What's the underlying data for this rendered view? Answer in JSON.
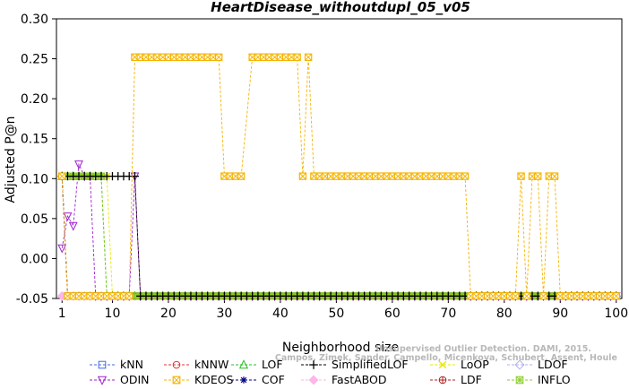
{
  "chart_data": {
    "type": "line",
    "title": "HeartDisease_withoutdupl_05_v05",
    "xlabel": "Neighborhood size",
    "ylabel": "Adjusted P@n",
    "xlim": [
      0,
      101
    ],
    "ylim": [
      -0.05,
      0.3
    ],
    "xticks": [
      1,
      10,
      20,
      30,
      40,
      50,
      60,
      70,
      80,
      90,
      100
    ],
    "yticks": [
      -0.05,
      0.0,
      0.05,
      0.1,
      0.15,
      0.2,
      0.25,
      0.3
    ],
    "ytick_labels": [
      "-0.05",
      "0.00",
      "0.05",
      "0.10",
      "0.15",
      "0.20",
      "0.25",
      "0.30"
    ],
    "grid": false,
    "legend_position": "bottom",
    "watermark": [
      "Campos, Zimek, Sander, Campello, Micenkova, Schubert, Assent, Houle",
      "Unsupervised Outlier Detection. DAMI, 2015."
    ],
    "series": [
      {
        "name": "kNN",
        "color": "#4169e1",
        "marker": "square",
        "segments": [
          {
            "x_from": 1,
            "x_to": 1,
            "y": 0.103
          },
          {
            "x_from": 2,
            "x_to": 100,
            "y": -0.047
          }
        ]
      },
      {
        "name": "kNNW",
        "color": "#e03030",
        "marker": "circle",
        "segments": [
          {
            "x_from": 1,
            "x_to": 1,
            "y": 0.103
          },
          {
            "x_from": 2,
            "x_to": 100,
            "y": -0.047
          }
        ]
      },
      {
        "name": "LOF",
        "color": "#22c022",
        "marker": "triangle-up",
        "segments": [
          {
            "x_from": 1,
            "x_to": 8,
            "y": 0.103
          },
          {
            "x_from": 9,
            "x_to": 100,
            "y": -0.047
          }
        ]
      },
      {
        "name": "SimplifiedLOF",
        "color": "#000000",
        "marker": "plus",
        "segments": [
          {
            "x_from": 1,
            "x_to": 14,
            "y": 0.103
          },
          {
            "x_from": 15,
            "x_to": 100,
            "y": -0.047
          }
        ]
      },
      {
        "name": "LoOP",
        "color": "#e8e800",
        "marker": "x",
        "segments": [
          {
            "x_from": 1,
            "x_to": 9,
            "y": 0.103
          },
          {
            "x_from": 10,
            "x_to": 100,
            "y": -0.047
          }
        ]
      },
      {
        "name": "LDOF",
        "color": "#b0b0ee",
        "marker": "diamond",
        "segments": [
          {
            "x_from": 1,
            "x_to": 100,
            "y": -0.047
          }
        ]
      },
      {
        "name": "ODIN",
        "color": "#a020d0",
        "marker": "triangle-down",
        "points": [
          [
            1,
            0.013
          ],
          [
            2,
            0.053
          ],
          [
            3,
            0.041
          ],
          [
            4,
            0.118
          ],
          [
            5,
            0.103
          ],
          [
            6,
            0.103
          ],
          [
            7,
            -0.047
          ],
          [
            8,
            -0.047
          ],
          [
            9,
            -0.047
          ],
          [
            10,
            -0.047
          ],
          [
            11,
            -0.047
          ],
          [
            12,
            -0.047
          ],
          [
            13,
            -0.047
          ],
          [
            14,
            0.103
          ],
          [
            15,
            -0.047
          ]
        ],
        "tail": {
          "x_from": 16,
          "x_to": 100,
          "y": -0.047
        }
      },
      {
        "name": "KDEOS",
        "color": "#f5b400",
        "marker": "square-x",
        "segments": [
          {
            "x_from": 1,
            "x_to": 1,
            "y": 0.103
          },
          {
            "x_from": 2,
            "x_to": 13,
            "y": -0.047
          },
          {
            "x_from": 14,
            "x_to": 29,
            "y": 0.252
          },
          {
            "x_from": 30,
            "x_to": 33,
            "y": 0.103
          },
          {
            "x_from": 35,
            "x_to": 43,
            "y": 0.252
          },
          {
            "x_from": 44,
            "x_to": 44,
            "y": 0.103
          },
          {
            "x_from": 45,
            "x_to": 45,
            "y": 0.252
          },
          {
            "x_from": 46,
            "x_to": 73,
            "y": 0.103
          },
          {
            "x_from": 74,
            "x_to": 82,
            "y": -0.047
          },
          {
            "x_from": 83,
            "x_to": 83,
            "y": 0.103
          },
          {
            "x_from": 84,
            "x_to": 84,
            "y": -0.047
          },
          {
            "x_from": 85,
            "x_to": 86,
            "y": 0.103
          },
          {
            "x_from": 87,
            "x_to": 87,
            "y": -0.047
          },
          {
            "x_from": 88,
            "x_to": 89,
            "y": 0.103
          },
          {
            "x_from": 90,
            "x_to": 100,
            "y": -0.047
          }
        ]
      },
      {
        "name": "COF",
        "color": "#000080",
        "marker": "asterisk",
        "segments": [
          {
            "x_from": 1,
            "x_to": 1,
            "y": 0.103
          },
          {
            "x_from": 2,
            "x_to": 100,
            "y": -0.047
          }
        ]
      },
      {
        "name": "FastABOD",
        "color": "#ffb6e6",
        "marker": "diamond-filled",
        "segments": [
          {
            "x_from": 1,
            "x_to": 100,
            "y": -0.047
          }
        ]
      },
      {
        "name": "LDF",
        "color": "#b02020",
        "marker": "circle-plus",
        "segments": [
          {
            "x_from": 1,
            "x_to": 1,
            "y": 0.103
          },
          {
            "x_from": 2,
            "x_to": 100,
            "y": -0.047
          }
        ]
      },
      {
        "name": "INFLO",
        "color": "#88cc22",
        "marker": "square-star",
        "segments": [
          {
            "x_from": 1,
            "x_to": 8,
            "y": 0.103
          },
          {
            "x_from": 9,
            "x_to": 100,
            "y": -0.047
          }
        ]
      }
    ]
  }
}
